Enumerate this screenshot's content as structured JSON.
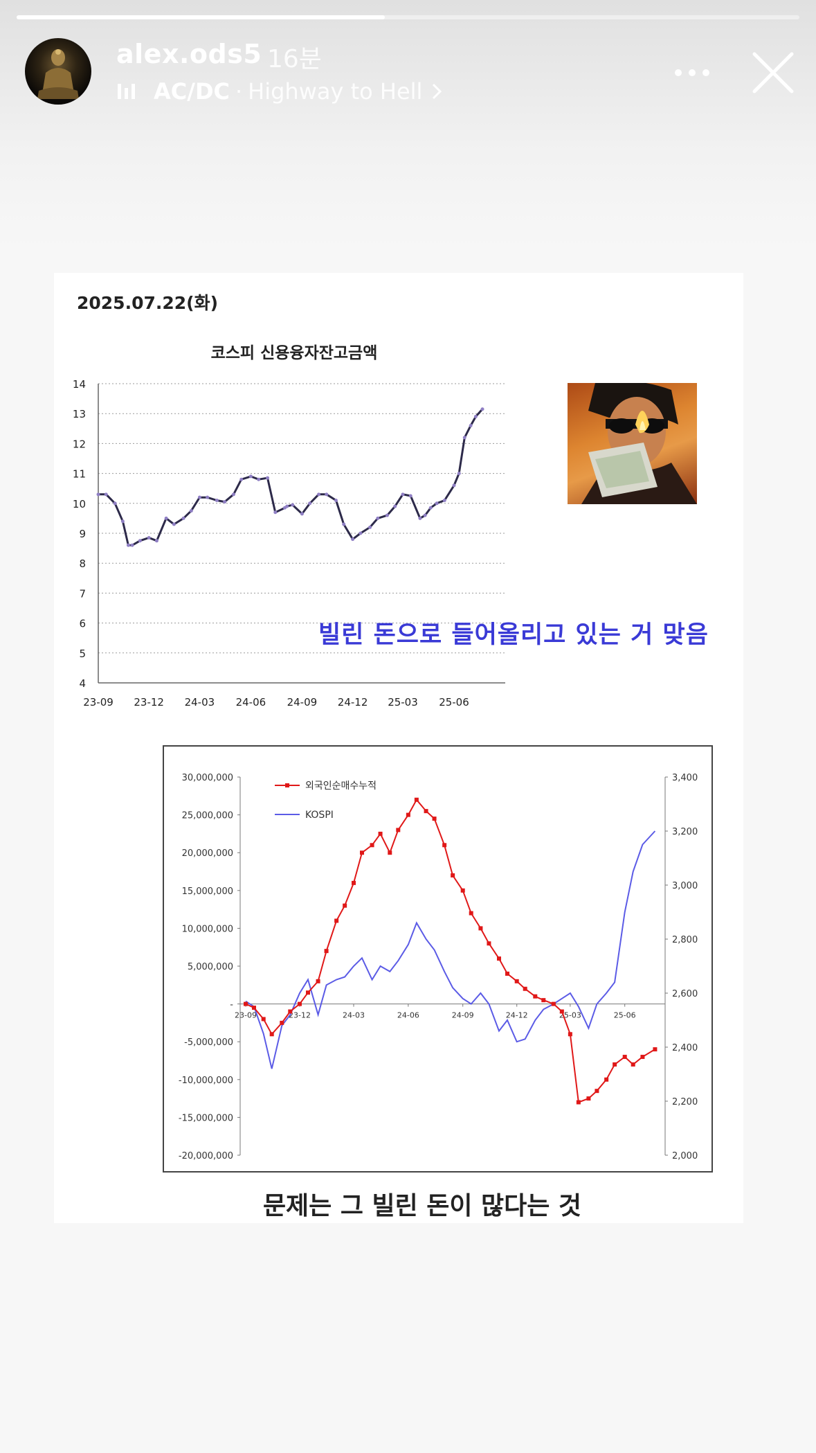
{
  "story": {
    "progress": 0.47,
    "user": {
      "username": "alex.ods5",
      "time_ago": "16분",
      "avatar_icon": "avatar-image"
    },
    "music": {
      "artist": "AC/DC",
      "separator": "·",
      "title": "Highway to Hell",
      "icon": "music-bars-icon"
    },
    "more_icon": "more-icon",
    "close_icon": "close-icon"
  },
  "content": {
    "date": "2025.07.22(화)",
    "chart1_title": "코스피 신용융자잔고금액",
    "caption_overlay": "빌린 돈으로 들어올리고 있는 거 맞음",
    "caption_bottom": "문제는 그 빌린 돈이 많다는 것",
    "photo_icon": "man-burning-money-photo",
    "colors": {
      "chart1_line": "#2d2a4a",
      "chart1_marker": "#8f7fc4",
      "series_red": "#e01818",
      "series_blue": "#5b5be6",
      "caption_blue": "#3a3ad6"
    }
  },
  "chart_data": [
    {
      "type": "line",
      "title": "코스피 신용융자잔고금액",
      "xlabel": "",
      "ylabel": "",
      "ylim": [
        4,
        14
      ],
      "yticks": [
        "4",
        "5",
        "6",
        "7",
        "8",
        "9",
        "10",
        "11",
        "12",
        "13",
        "14"
      ],
      "xticks": [
        "23-09",
        "23-12",
        "24-03",
        "24-06",
        "24-09",
        "24-12",
        "25-03",
        "25-06"
      ],
      "grid": true,
      "x": [
        "2023-09-01",
        "2023-09-15",
        "2023-10-01",
        "2023-10-15",
        "2023-10-25",
        "2023-11-01",
        "2023-11-15",
        "2023-12-01",
        "2023-12-15",
        "2024-01-01",
        "2024-01-15",
        "2024-02-01",
        "2024-02-15",
        "2024-03-01",
        "2024-03-15",
        "2024-04-01",
        "2024-04-15",
        "2024-05-01",
        "2024-05-15",
        "2024-06-01",
        "2024-06-15",
        "2024-07-01",
        "2024-07-15",
        "2024-08-01",
        "2024-08-05",
        "2024-08-15",
        "2024-09-01",
        "2024-09-15",
        "2024-10-01",
        "2024-10-15",
        "2024-11-01",
        "2024-11-15",
        "2024-12-01",
        "2024-12-15",
        "2025-01-01",
        "2025-01-15",
        "2025-02-01",
        "2025-02-15",
        "2025-03-01",
        "2025-03-15",
        "2025-04-01",
        "2025-04-10",
        "2025-04-20",
        "2025-05-01",
        "2025-05-15",
        "2025-06-01",
        "2025-06-10",
        "2025-06-20",
        "2025-07-01",
        "2025-07-10",
        "2025-07-22"
      ],
      "values": [
        10.3,
        10.3,
        10.0,
        9.4,
        8.6,
        8.6,
        8.75,
        8.85,
        8.75,
        9.5,
        9.3,
        9.5,
        9.75,
        10.2,
        10.2,
        10.1,
        10.05,
        10.3,
        10.8,
        10.9,
        10.8,
        10.85,
        9.7,
        9.85,
        9.9,
        9.95,
        9.65,
        10.0,
        10.3,
        10.3,
        10.1,
        9.3,
        8.8,
        9.0,
        9.2,
        9.5,
        9.6,
        9.9,
        10.3,
        10.25,
        9.5,
        9.6,
        9.85,
        10.0,
        10.1,
        10.6,
        11.0,
        12.2,
        12.6,
        12.9,
        13.15
      ]
    },
    {
      "type": "line",
      "title": "",
      "legend": "top-left",
      "yticks_left": [
        "30,000,000",
        "25,000,000",
        "20,000,000",
        "15,000,000",
        "10,000,000",
        "5,000,000",
        "-",
        "-5,000,000",
        "-10,000,000",
        "-15,000,000",
        "-20,000,000"
      ],
      "yticks_right": [
        "3,400",
        "3,200",
        "3,000",
        "2,800",
        "2,600",
        "2,400",
        "2,200",
        "2,000"
      ],
      "ylim_left": [
        -20000000,
        30000000
      ],
      "ylim_right": [
        2000,
        3400
      ],
      "xticks": [
        "23-09",
        "23-12",
        "24-03",
        "24-06",
        "24-09",
        "24-12",
        "25-03",
        "25-06"
      ],
      "series": [
        {
          "name": "외국인순매수누적",
          "axis": "left",
          "x": [
            "2023-09-01",
            "2023-09-15",
            "2023-10-01",
            "2023-10-15",
            "2023-11-01",
            "2023-11-15",
            "2023-12-01",
            "2023-12-15",
            "2024-01-01",
            "2024-01-15",
            "2024-02-01",
            "2024-02-15",
            "2024-03-01",
            "2024-03-15",
            "2024-04-01",
            "2024-04-15",
            "2024-05-01",
            "2024-05-15",
            "2024-06-01",
            "2024-06-15",
            "2024-07-01",
            "2024-07-15",
            "2024-08-01",
            "2024-08-15",
            "2024-09-01",
            "2024-09-15",
            "2024-10-01",
            "2024-10-15",
            "2024-11-01",
            "2024-11-15",
            "2024-12-01",
            "2024-12-15",
            "2025-01-01",
            "2025-01-15",
            "2025-02-01",
            "2025-02-15",
            "2025-03-01",
            "2025-03-15",
            "2025-04-01",
            "2025-04-15",
            "2025-05-01",
            "2025-05-15",
            "2025-06-01",
            "2025-06-15",
            "2025-07-01",
            "2025-07-22"
          ],
          "values": [
            0,
            -500000,
            -2000000,
            -4000000,
            -2500000,
            -1000000,
            0,
            1500000,
            3000000,
            7000000,
            11000000,
            13000000,
            16000000,
            20000000,
            21000000,
            22500000,
            20000000,
            23000000,
            25000000,
            27000000,
            25500000,
            24500000,
            21000000,
            17000000,
            15000000,
            12000000,
            10000000,
            8000000,
            6000000,
            4000000,
            3000000,
            2000000,
            1000000,
            500000,
            0,
            -1000000,
            -4000000,
            -13000000,
            -12500000,
            -11500000,
            -10000000,
            -8000000,
            -7000000,
            -8000000,
            -7000000,
            -6000000
          ]
        },
        {
          "name": "KOSPI",
          "axis": "right",
          "x": [
            "2023-09-01",
            "2023-09-15",
            "2023-10-01",
            "2023-10-15",
            "2023-11-01",
            "2023-11-15",
            "2023-12-01",
            "2023-12-15",
            "2024-01-01",
            "2024-01-15",
            "2024-02-01",
            "2024-02-15",
            "2024-03-01",
            "2024-03-15",
            "2024-04-01",
            "2024-04-15",
            "2024-05-01",
            "2024-05-15",
            "2024-06-01",
            "2024-06-15",
            "2024-07-01",
            "2024-07-15",
            "2024-08-01",
            "2024-08-15",
            "2024-09-01",
            "2024-09-15",
            "2024-10-01",
            "2024-10-15",
            "2024-11-01",
            "2024-11-15",
            "2024-12-01",
            "2024-12-15",
            "2025-01-01",
            "2025-01-15",
            "2025-02-01",
            "2025-02-15",
            "2025-03-01",
            "2025-03-15",
            "2025-04-01",
            "2025-04-15",
            "2025-05-01",
            "2025-05-15",
            "2025-06-01",
            "2025-06-15",
            "2025-07-01",
            "2025-07-22"
          ],
          "values": [
            2570,
            2550,
            2450,
            2320,
            2480,
            2520,
            2600,
            2650,
            2520,
            2630,
            2650,
            2660,
            2700,
            2730,
            2650,
            2700,
            2680,
            2720,
            2780,
            2860,
            2800,
            2760,
            2680,
            2620,
            2580,
            2560,
            2600,
            2560,
            2460,
            2500,
            2420,
            2430,
            2500,
            2540,
            2560,
            2580,
            2600,
            2550,
            2470,
            2560,
            2600,
            2640,
            2900,
            3050,
            3150,
            3200
          ]
        }
      ]
    }
  ]
}
